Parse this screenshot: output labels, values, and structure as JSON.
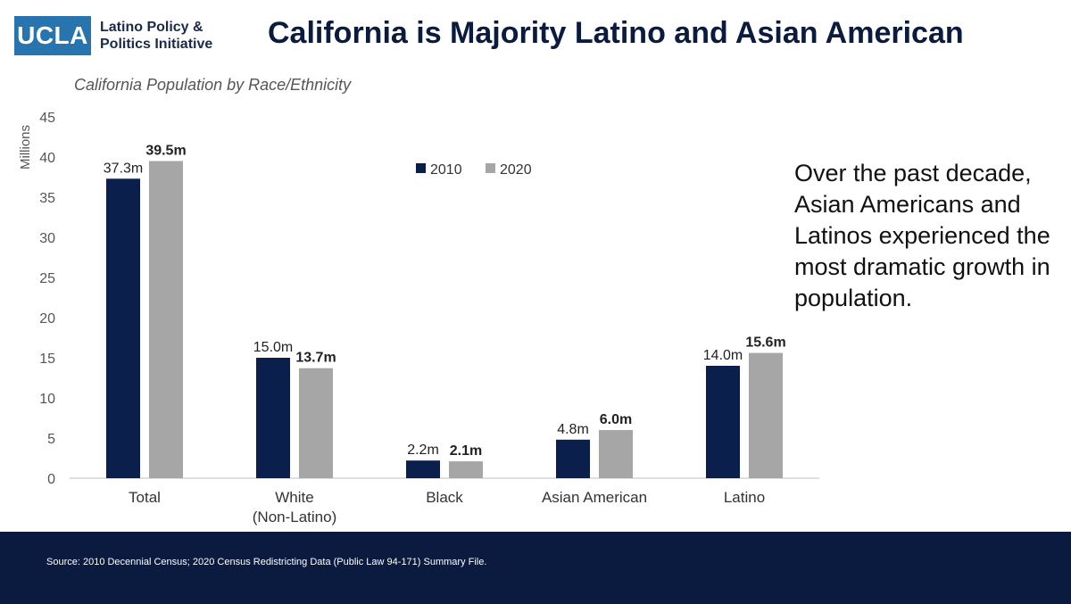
{
  "logo": {
    "mark": "UCLA",
    "line1": "Latino Policy &",
    "line2": "Politics Initiative"
  },
  "title": "California is Majority Latino and Asian American",
  "subtitle": "California Population by Race/Ethnicity",
  "callout": "Over the past decade, Asian Americans and Latinos experienced the most dramatic growth in population.",
  "footer": "Source: 2010 Decennial Census; 2020 Census Redistricting Data (Public Law 94-171) Summary File.",
  "colors": {
    "s2010": "#0b1f4d",
    "s2020": "#a6a6a6",
    "footer": "#0b1a3f",
    "logo": "#2774AE"
  },
  "chart_data": {
    "type": "bar",
    "title": "California Population by Race/Ethnicity",
    "ylabel": "Millions",
    "xlabel": "",
    "ylim": [
      0,
      45
    ],
    "yticks": [
      0,
      5,
      10,
      15,
      20,
      25,
      30,
      35,
      40,
      45
    ],
    "legend": "top-center",
    "categories": [
      "Total",
      "White (Non-Latino)",
      "Black",
      "Asian American",
      "Latino"
    ],
    "category_lines": [
      [
        "Total"
      ],
      [
        "White",
        "(Non-Latino)"
      ],
      [
        "Black"
      ],
      [
        "Asian American"
      ],
      [
        "Latino"
      ]
    ],
    "series": [
      {
        "name": "2010",
        "values": [
          37.3,
          15.0,
          2.2,
          4.8,
          14.0
        ],
        "labels": [
          "37.3m",
          "15.0m",
          "2.2m",
          "4.8m",
          "14.0m"
        ],
        "bold": false
      },
      {
        "name": "2020",
        "values": [
          39.5,
          13.7,
          2.1,
          6.0,
          15.6
        ],
        "labels": [
          "39.5m",
          "13.7m",
          "2.1m",
          "6.0m",
          "15.6m"
        ],
        "bold": true
      }
    ]
  }
}
